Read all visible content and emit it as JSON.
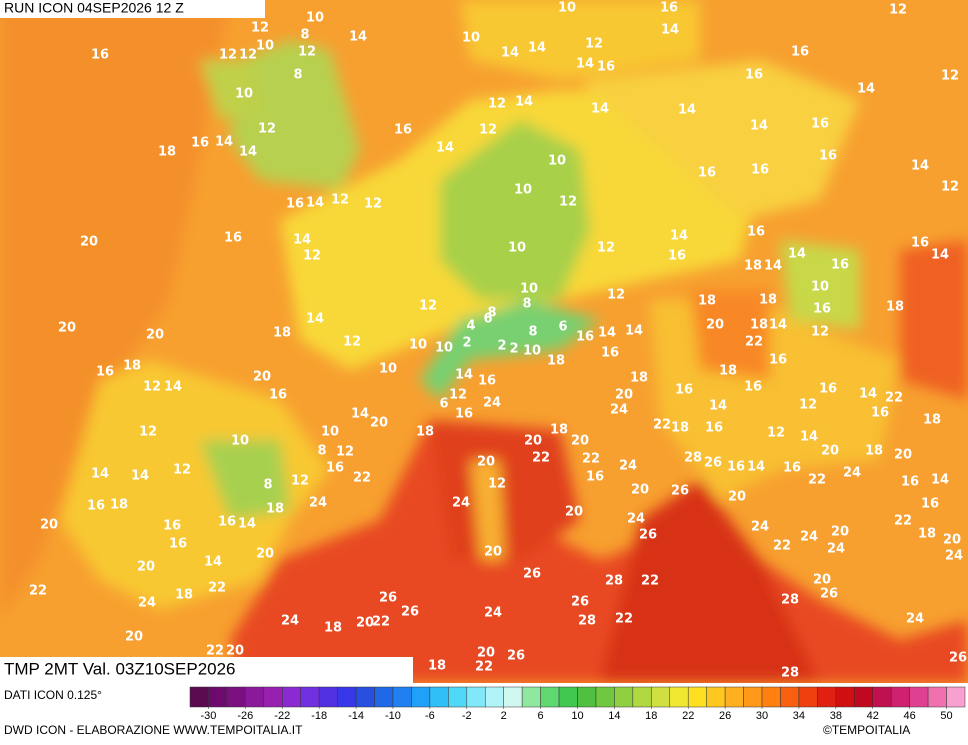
{
  "header": {
    "run": "RUN ICON 04SEP2026 12 Z",
    "valid": "TMP 2MT Val. 03Z10SEP2026"
  },
  "map": {
    "labels": [
      10,
      12,
      8,
      14,
      10,
      12,
      12,
      12,
      16,
      8,
      10,
      12,
      18,
      16,
      14,
      14,
      16,
      14,
      12,
      16,
      14,
      12,
      16,
      20,
      14,
      12,
      20,
      20,
      18,
      14,
      12,
      12,
      10,
      10,
      16,
      18,
      12,
      14,
      20,
      16,
      12,
      10,
      10,
      8,
      12,
      14,
      20,
      18,
      16,
      12,
      22,
      8,
      18,
      24,
      14,
      16,
      14,
      14,
      12,
      16,
      18,
      16,
      16,
      20,
      20,
      14,
      20,
      22,
      18,
      22,
      24,
      20,
      22,
      20,
      24,
      18,
      20,
      26,
      26,
      22,
      18,
      20,
      22,
      26,
      24,
      24,
      20,
      26,
      26,
      28,
      28,
      22,
      22,
      28,
      26,
      24,
      28,
      26,
      20,
      24,
      22,
      24,
      20,
      24,
      20,
      26,
      28,
      26,
      16,
      14,
      16,
      22,
      20,
      24,
      18,
      20,
      16,
      14,
      22,
      18,
      20,
      24,
      16,
      10,
      14,
      14,
      12,
      12,
      14,
      10,
      16,
      14,
      12,
      14,
      16,
      14,
      14,
      16,
      16,
      12,
      12,
      14,
      14,
      16,
      16,
      16,
      16,
      14,
      12,
      10,
      10,
      12,
      10,
      12,
      14,
      16,
      16,
      14,
      14,
      18,
      16,
      16,
      14,
      18,
      10,
      16,
      12,
      18,
      14,
      18,
      22,
      18,
      20,
      16,
      18,
      16,
      12,
      16,
      14,
      16,
      22,
      18,
      12,
      14,
      10,
      8,
      12,
      8,
      4,
      6,
      6,
      14,
      14,
      2,
      2,
      2,
      8,
      10,
      18,
      16,
      16,
      18,
      20,
      24,
      22,
      16,
      18,
      16,
      14,
      10,
      14,
      16,
      6,
      12,
      16,
      24,
      20,
      22,
      18,
      20,
      22,
      24,
      16,
      20,
      12,
      20,
      24,
      26,
      20
    ]
  },
  "colorbar": {
    "clim": [
      -32,
      52
    ],
    "ticks": [
      -30,
      -26,
      -22,
      -18,
      -14,
      -10,
      -6,
      -2,
      2,
      6,
      10,
      14,
      18,
      22,
      26,
      30,
      34,
      38,
      42,
      46,
      50
    ],
    "colors": [
      "#5a0a4e",
      "#6e0a6e",
      "#7a1080",
      "#8a1a9a",
      "#9820b0",
      "#8a2ad0",
      "#7030e0",
      "#5030e0",
      "#3838e8",
      "#2850e0",
      "#2068e8",
      "#2080f0",
      "#20a0f8",
      "#30c0f8",
      "#50d8f8",
      "#80e8f8",
      "#b0f4f8",
      "#d0f8f0",
      "#90e8a0",
      "#60d870",
      "#40c850",
      "#50c040",
      "#70c840",
      "#90d040",
      "#b0d840",
      "#d0e040",
      "#f0e830",
      "#ffe020",
      "#ffc820",
      "#ffb020",
      "#ff9818",
      "#ff8010",
      "#f86010",
      "#f04010",
      "#e02010",
      "#d01010",
      "#c00820",
      "#c01050",
      "#d02070",
      "#e04090",
      "#f070b0",
      "#f8a0d0"
    ]
  },
  "footer": {
    "source": "DATI ICON 0.125°",
    "credit": "DWD ICON - ELABORAZIONE WWW.TEMPOITALIA.IT",
    "copyright": "©TEMPOITALIA"
  }
}
